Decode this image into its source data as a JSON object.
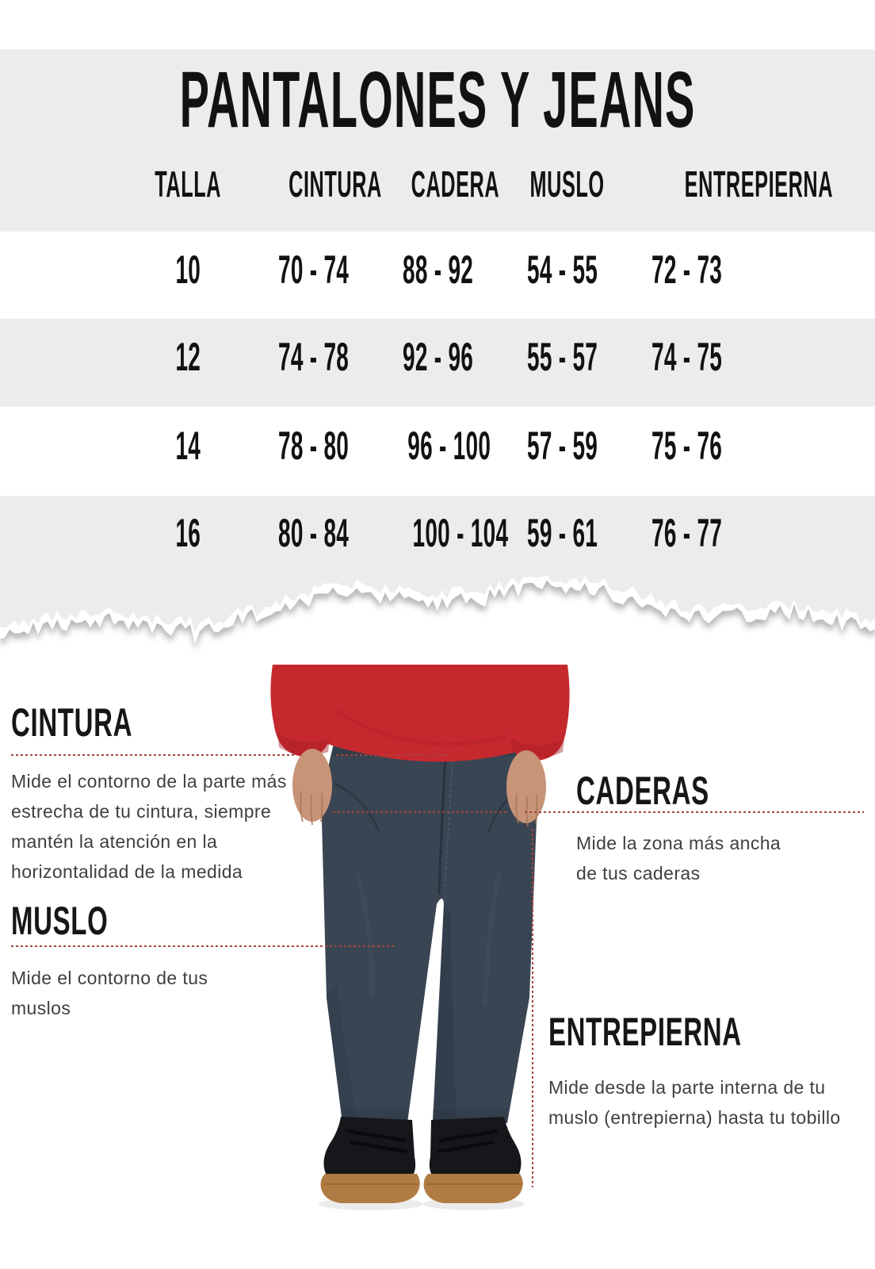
{
  "title": "PANTALONES Y JEANS",
  "table": {
    "columns": [
      "TALLA",
      "CINTURA",
      "CADERA",
      "MUSLO",
      "ENTREPIERNA"
    ],
    "rows": [
      [
        "10",
        "70 - 74",
        "88 - 92",
        "54 - 55",
        "72 - 73"
      ],
      [
        "12",
        "74 - 78",
        "92 - 96",
        "55 - 57",
        "74 - 75"
      ],
      [
        "14",
        "78 - 80",
        "96 - 100",
        "57 - 59",
        "75 - 76"
      ],
      [
        "16",
        "80 - 84",
        "100 - 104",
        "59 - 61",
        "76 - 77"
      ]
    ]
  },
  "guides": [
    {
      "id": "cintura",
      "title": "CINTURA",
      "description": "Mide el contorno de la parte más estrecha de tu cintura, siempre mantén la atención en  la horizontalidad de la medida"
    },
    {
      "id": "caderas",
      "title": "CADERAS",
      "description": "Mide la zona más ancha de tus caderas"
    },
    {
      "id": "muslo",
      "title": "MUSLO",
      "description": "Mide el contorno de tus muslos"
    },
    {
      "id": "entrepierna",
      "title": "ENTREPIERNA",
      "description": "Mide desde la parte interna de tu muslo (entrepierna) hasta tu tobillo"
    }
  ],
  "figure_alt": "modelo con jeans y sudadera roja",
  "colors": {
    "white": "#ffffff",
    "panel_bg": "#ececec",
    "accent": "#a5453c",
    "heading_color": "#161616",
    "body_text": "#3f3f3f",
    "table_text": "#121212",
    "sweater": "#c5292e",
    "sweater_shade": "#a81f25",
    "skin": "#c79478",
    "skin_shade": "#a9765a",
    "jeans": "#3a4553",
    "jeans_dark": "#29323e",
    "jeans_light": "#55657a",
    "shoe": "#16171a",
    "sole": "#b17c43",
    "sole_dark": "#8a5c2e"
  }
}
